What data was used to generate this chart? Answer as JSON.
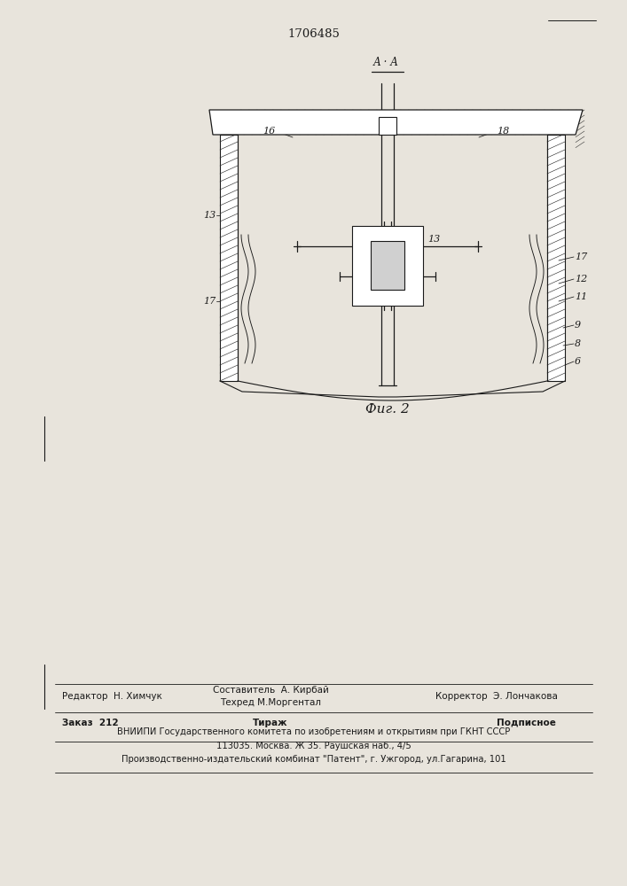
{
  "patent_number": "1706485",
  "fig_label": "Фиг. 2",
  "section_label": "А · А",
  "bg_color": "#e8e4dc",
  "line_color": "#1a1a1a",
  "bottom_text_editor": "Редактор  Н. Химчук",
  "bottom_text_compiler": "Составитель  А. Кирбай",
  "bottom_text_techred": "Техред М.Моргентал",
  "bottom_text_corrector": "Корректор  Э. Лончакова",
  "bottom_text_order": "Заказ  212",
  "bottom_text_tirazh": "Тираж",
  "bottom_text_podpisnoe": "Подписное",
  "bottom_text_vniip1": "ВНИИПИ Государственного комитета по изобретениям и открытиям при ГКНТ СССР",
  "bottom_text_vniip2": "113035. Москва. Ж 35. Раушская наб., 4/5",
  "bottom_text_publisher": "Производственно-издательский комбинат \"Патент\", г. Ужгород, ул.Гагарина, 101"
}
